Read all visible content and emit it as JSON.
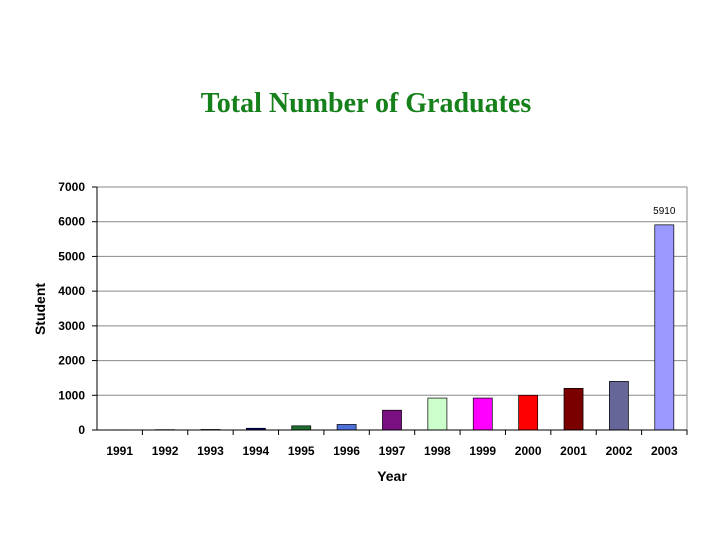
{
  "title": "Total Number of Graduates",
  "chart_data": {
    "type": "bar",
    "title": "Total Number of Graduates",
    "xlabel": "Year",
    "ylabel": "Student",
    "categories": [
      "1991",
      "1992",
      "1993",
      "1994",
      "1995",
      "1996",
      "1997",
      "1998",
      "1999",
      "2000",
      "2001",
      "2002",
      "2003"
    ],
    "values": [
      5,
      10,
      15,
      50,
      120,
      160,
      570,
      920,
      920,
      1000,
      1200,
      1400,
      5910
    ],
    "colors": [
      "#cccccc",
      "#cccccc",
      "#cccccc",
      "#000080",
      "#1e6e2e",
      "#4f6fdb",
      "#7a0f82",
      "#ccffcc",
      "#ff00ff",
      "#ff0000",
      "#7a0000",
      "#666699",
      "#9999ff"
    ],
    "ylim": [
      0,
      7000
    ],
    "yticks": [
      0,
      1000,
      2000,
      3000,
      4000,
      5000,
      6000,
      7000
    ],
    "data_labels": [
      {
        "index": 12,
        "text": "5910"
      }
    ],
    "grid": true,
    "legend": "none"
  }
}
